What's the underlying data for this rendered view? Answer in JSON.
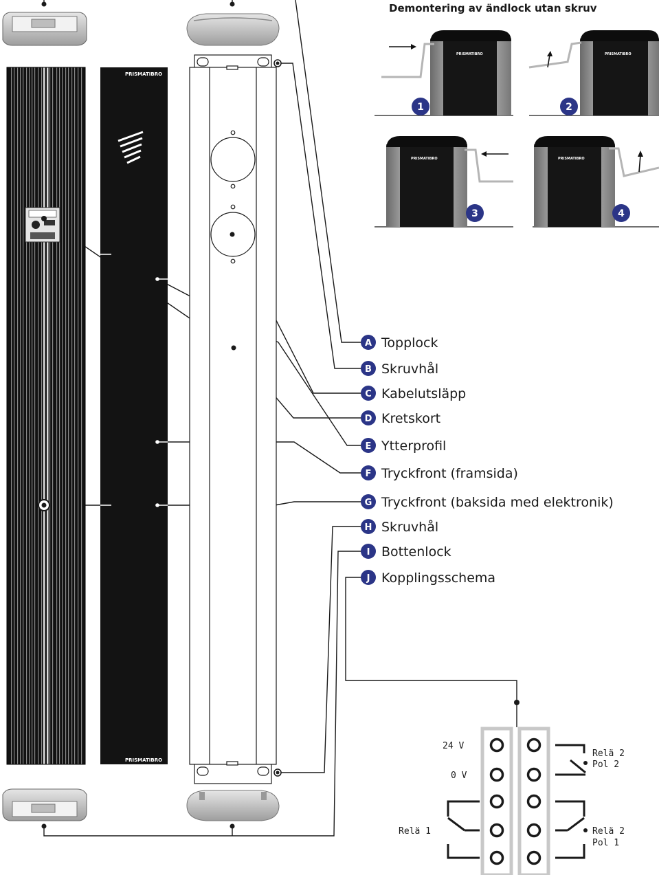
{
  "brand": "PRISMATIBRO",
  "removal_guide": {
    "title": "Demontering av ändlock utan skruv",
    "steps": [
      "1",
      "2",
      "3",
      "4"
    ]
  },
  "callouts": [
    {
      "letter": "A",
      "label": "Topplock"
    },
    {
      "letter": "B",
      "label": "Skruvhål"
    },
    {
      "letter": "C",
      "label": "Kabelutsläpp"
    },
    {
      "letter": "D",
      "label": "Kretskort"
    },
    {
      "letter": "E",
      "label": "Ytterprofil"
    },
    {
      "letter": "F",
      "label": "Tryckfront (framsida)"
    },
    {
      "letter": "G",
      "label": "Tryckfront (baksida med elektronik)"
    },
    {
      "letter": "H",
      "label": "Skruvhål"
    },
    {
      "letter": "I",
      "label": "Bottenlock"
    },
    {
      "letter": "J",
      "label": "Kopplingsschema"
    }
  ],
  "wiring": {
    "v24": "24 V",
    "v0": "0 V",
    "relay1": "Relä 1",
    "relay2_pol2_relay": "Relä 2",
    "relay2_pol2_pol": "Pol 2",
    "relay2_pol1_relay": "Relä 2",
    "relay2_pol1_pol": "Pol 1"
  },
  "colors": {
    "badge": "#2b3587",
    "profile_dark": "#141414",
    "rail_light": "#c8c8c8"
  }
}
